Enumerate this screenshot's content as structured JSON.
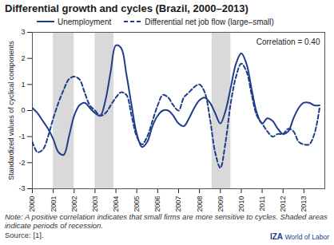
{
  "chart_data": {
    "type": "line",
    "title": "Differential growth and cycles (Brazil, 2000–2013)",
    "x": [
      2000,
      2000.25,
      2000.5,
      2000.75,
      2001,
      2001.25,
      2001.5,
      2001.75,
      2002,
      2002.25,
      2002.5,
      2002.75,
      2003,
      2003.25,
      2003.5,
      2003.75,
      2004,
      2004.25,
      2004.5,
      2004.75,
      2005,
      2005.25,
      2005.5,
      2005.75,
      2006,
      2006.25,
      2006.5,
      2006.75,
      2007,
      2007.25,
      2007.5,
      2007.75,
      2008,
      2008.25,
      2008.5,
      2008.75,
      2009,
      2009.25,
      2009.5,
      2009.75,
      2010,
      2010.25,
      2010.5,
      2010.75,
      2011,
      2011.25,
      2011.5,
      2011.75,
      2012,
      2012.25,
      2012.5,
      2012.75,
      2013,
      2013.25,
      2013.5,
      2013.75
    ],
    "series": [
      {
        "name": "Unemployment",
        "color": "#1f3d8a",
        "line_style": "solid",
        "values": [
          0.1,
          -0.1,
          -0.4,
          -0.7,
          -1.1,
          -1.6,
          -1.7,
          -1.0,
          -0.2,
          0.2,
          0.3,
          0.1,
          -0.1,
          -0.2,
          0.4,
          1.5,
          2.5,
          2.4,
          1.4,
          0.2,
          -0.9,
          -1.4,
          -1.2,
          -0.6,
          -0.2,
          0.0,
          0.0,
          -0.2,
          -0.5,
          -0.6,
          -0.3,
          0.1,
          0.4,
          0.5,
          0.3,
          -0.1,
          -0.5,
          0.0,
          0.9,
          1.8,
          2.2,
          1.8,
          0.8,
          -0.1,
          -0.5,
          -0.3,
          -0.4,
          -0.7,
          -0.9,
          -0.8,
          -0.3,
          0.1,
          0.3,
          0.3,
          0.2,
          0.2
        ]
      },
      {
        "name": "Differential net job flow (large–small)",
        "color": "#1f3d8a",
        "line_style": "dashed",
        "values": [
          -1.2,
          -1.6,
          -1.5,
          -1.0,
          -0.3,
          0.3,
          0.8,
          1.2,
          1.3,
          1.2,
          0.7,
          0.2,
          0.0,
          -0.2,
          -0.1,
          0.2,
          0.5,
          0.7,
          0.6,
          -0.2,
          -1.0,
          -1.3,
          -1.0,
          -0.4,
          0.2,
          0.6,
          0.5,
          0.2,
          0.0,
          0.5,
          0.7,
          0.9,
          1.0,
          0.7,
          -0.3,
          -1.6,
          -2.2,
          -1.2,
          0.3,
          1.3,
          1.8,
          1.5,
          0.6,
          -0.2,
          -0.5,
          -0.8,
          -1.0,
          -0.9,
          -0.9,
          -0.7,
          -0.8,
          -1.2,
          -1.3,
          -1.3,
          -0.9,
          0.1
        ]
      }
    ],
    "ylabel": "Standardized values of cyclical components",
    "xlim": [
      2000,
      2014
    ],
    "xticks": [
      2000,
      2001,
      2002,
      2003,
      2004,
      2005,
      2006,
      2007,
      2008,
      2009,
      2010,
      2011,
      2012,
      2013
    ],
    "ylim": [
      -3,
      3
    ],
    "yticks": [
      -3,
      -2,
      -1,
      0,
      1,
      2,
      3
    ],
    "recessions": [
      [
        2001,
        2002
      ],
      [
        2003,
        2003.9
      ],
      [
        2008.6,
        2009.5
      ]
    ],
    "annotation": "Correlation = 0.40",
    "note": "Note: A positive correlation indicates that small firms are more sensitive to cycles. Shaded areas indicate periods of recession.",
    "source": "Source: [1].",
    "logo": [
      "IZA",
      "World of Labor"
    ],
    "grid": false,
    "legend": "top"
  }
}
